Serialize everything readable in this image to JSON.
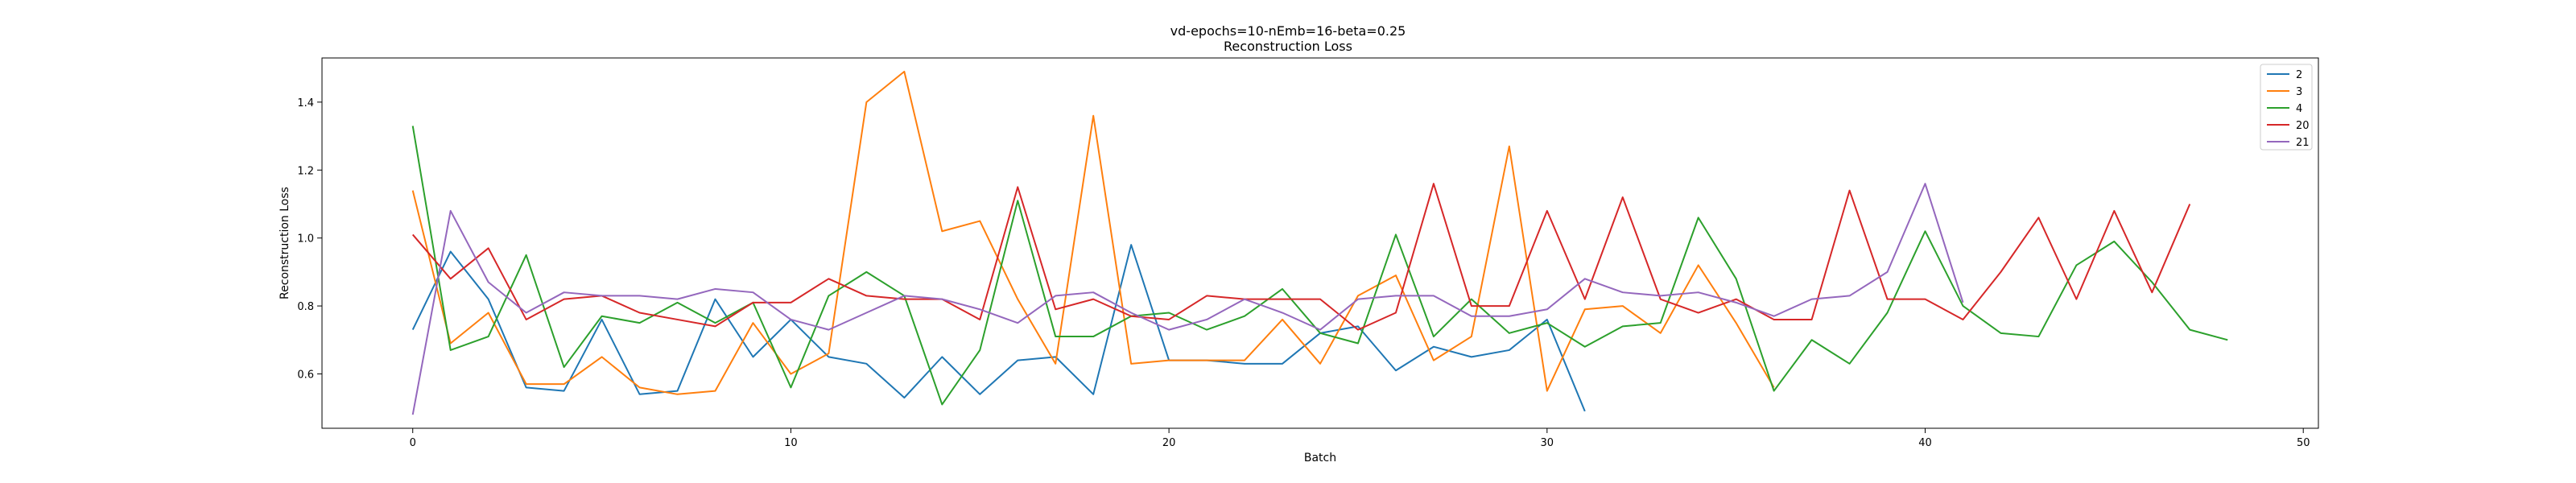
{
  "chart_data": {
    "type": "line",
    "title": "vd-epochs=10-nEmb=16-beta=0.25",
    "subtitle": "Reconstruction Loss",
    "xlabel": "Batch",
    "ylabel": "Reconstruction Loss",
    "xlim": [
      -2.4,
      50.4
    ],
    "ylim": [
      0.44,
      1.53
    ],
    "xticks": [
      0,
      10,
      20,
      30,
      40,
      50
    ],
    "yticks": [
      0.6,
      0.8,
      1.0,
      1.2,
      1.4
    ],
    "xtick_labels": [
      "0",
      "10",
      "20",
      "30",
      "40",
      "50"
    ],
    "ytick_labels": [
      "0.6",
      "0.8",
      "1.0",
      "1.2",
      "1.4"
    ],
    "grid": false,
    "legend_position": "top-right",
    "series": [
      {
        "name": "2",
        "color": "#1f77b4",
        "values": [
          0.73,
          0.96,
          0.82,
          0.56,
          0.55,
          0.76,
          0.54,
          0.55,
          0.82,
          0.65,
          0.76,
          0.65,
          0.63,
          0.53,
          0.65,
          0.54,
          0.64,
          0.65,
          0.54,
          0.98,
          0.64,
          0.64,
          0.63,
          0.63,
          0.72,
          0.74,
          0.61,
          0.68,
          0.65,
          0.67,
          0.76,
          0.49
        ]
      },
      {
        "name": "3",
        "color": "#ff7f0e",
        "values": [
          1.14,
          0.69,
          0.78,
          0.57,
          0.57,
          0.65,
          0.56,
          0.54,
          0.55,
          0.75,
          0.6,
          0.66,
          1.4,
          1.49,
          1.02,
          1.05,
          0.82,
          0.63,
          1.36,
          0.63,
          0.64,
          0.64,
          0.64,
          0.76,
          0.63,
          0.83,
          0.89,
          0.64,
          0.71,
          1.27,
          0.55,
          0.79,
          0.8,
          0.72,
          0.92,
          0.75,
          0.56
        ]
      },
      {
        "name": "4",
        "color": "#2ca02c",
        "values": [
          1.33,
          0.67,
          0.71,
          0.95,
          0.62,
          0.77,
          0.75,
          0.81,
          0.75,
          0.81,
          0.56,
          0.83,
          0.9,
          0.83,
          0.51,
          0.67,
          1.11,
          0.71,
          0.71,
          0.77,
          0.78,
          0.73,
          0.77,
          0.85,
          0.72,
          0.69,
          1.01,
          0.71,
          0.82,
          0.72,
          0.75,
          0.68,
          0.74,
          0.75,
          1.06,
          0.88,
          0.55,
          0.7,
          0.63,
          0.78,
          1.02,
          0.8,
          0.72,
          0.71,
          0.92,
          0.99,
          0.87,
          0.73,
          0.7
        ]
      },
      {
        "name": "20",
        "color": "#d62728",
        "values": [
          1.01,
          0.88,
          0.97,
          0.76,
          0.82,
          0.83,
          0.78,
          0.76,
          0.74,
          0.81,
          0.81,
          0.88,
          0.83,
          0.82,
          0.82,
          0.76,
          1.15,
          0.79,
          0.82,
          0.77,
          0.76,
          0.83,
          0.82,
          0.82,
          0.82,
          0.73,
          0.78,
          1.16,
          0.8,
          0.8,
          1.08,
          0.82,
          1.12,
          0.82,
          0.78,
          0.82,
          0.76,
          0.76,
          1.14,
          0.82,
          0.82,
          0.76,
          0.9,
          1.06,
          0.82,
          1.08,
          0.84,
          1.1
        ]
      },
      {
        "name": "21",
        "color": "#9467bd",
        "values": [
          0.48,
          1.08,
          0.87,
          0.78,
          0.84,
          0.83,
          0.83,
          0.82,
          0.85,
          0.84,
          0.76,
          0.73,
          0.78,
          0.83,
          0.82,
          0.79,
          0.75,
          0.83,
          0.84,
          0.78,
          0.73,
          0.76,
          0.82,
          0.78,
          0.73,
          0.82,
          0.83,
          0.83,
          0.77,
          0.77,
          0.79,
          0.88,
          0.84,
          0.83,
          0.84,
          0.81,
          0.77,
          0.82,
          0.83,
          0.9,
          1.16,
          0.81
        ]
      }
    ]
  }
}
